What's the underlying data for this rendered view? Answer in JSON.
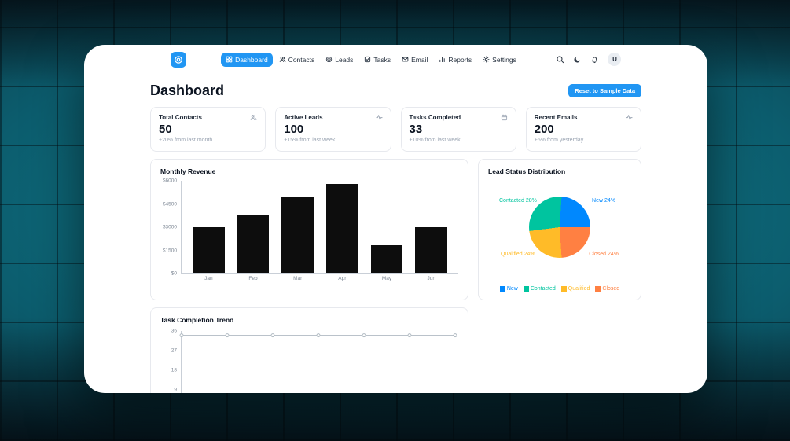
{
  "nav": {
    "items": [
      {
        "label": "Dashboard",
        "icon": "grid-icon",
        "active": true
      },
      {
        "label": "Contacts",
        "icon": "users-icon",
        "active": false
      },
      {
        "label": "Leads",
        "icon": "target-icon",
        "active": false
      },
      {
        "label": "Tasks",
        "icon": "check-square-icon",
        "active": false
      },
      {
        "label": "Email",
        "icon": "mail-icon",
        "active": false
      },
      {
        "label": "Reports",
        "icon": "bar-chart-icon",
        "active": false
      },
      {
        "label": "Settings",
        "icon": "gear-icon",
        "active": false
      }
    ],
    "actions": [
      {
        "icon": "search-icon"
      },
      {
        "icon": "moon-icon"
      },
      {
        "icon": "bell-icon"
      }
    ],
    "avatar_initial": "U"
  },
  "page": {
    "title": "Dashboard",
    "reset_button_label": "Reset to Sample Data"
  },
  "stats": [
    {
      "title": "Total Contacts",
      "icon": "users-icon",
      "value": "50",
      "note": "+20% from last month"
    },
    {
      "title": "Active Leads",
      "icon": "activity-icon",
      "value": "100",
      "note": "+15% from last week"
    },
    {
      "title": "Tasks Completed",
      "icon": "calendar-icon",
      "value": "33",
      "note": "+10% from last week"
    },
    {
      "title": "Recent Emails",
      "icon": "activity-icon",
      "value": "200",
      "note": "+5% from yesterday"
    }
  ],
  "colors": {
    "accent": "#2196f3",
    "axis": "#c9cfd7"
  },
  "chart_data": [
    {
      "type": "bar",
      "title": "Monthly Revenue",
      "categories": [
        "Jan",
        "Feb",
        "Mar",
        "Apr",
        "May",
        "Jun"
      ],
      "values": [
        3000,
        3800,
        4900,
        5800,
        1800,
        3000
      ],
      "xlabel": "",
      "ylabel": "",
      "ylim": [
        0,
        6000
      ],
      "yticks": [
        "$6000",
        "$4500",
        "$3000",
        "$1500",
        "$0"
      ],
      "bar_color": "#0d0d0d",
      "grid": false,
      "legend": false
    },
    {
      "type": "pie",
      "title": "Lead Status Distribution",
      "slices": [
        {
          "label": "New",
          "pct": 24,
          "color": "#0088FE"
        },
        {
          "label": "Contacted",
          "pct": 28,
          "color": "#00C49F"
        },
        {
          "label": "Qualified",
          "pct": 24,
          "color": "#FFBB28"
        },
        {
          "label": "Closed",
          "pct": 24,
          "color": "#FF8042"
        }
      ],
      "legend_position": "bottom"
    },
    {
      "type": "line",
      "title": "Task Completion Trend",
      "values": [
        34,
        34,
        34,
        34,
        34,
        34,
        34
      ],
      "yticks": [
        36,
        27,
        18,
        9
      ],
      "ylim": [
        0,
        36
      ],
      "line_color": "#b0bac2"
    }
  ]
}
